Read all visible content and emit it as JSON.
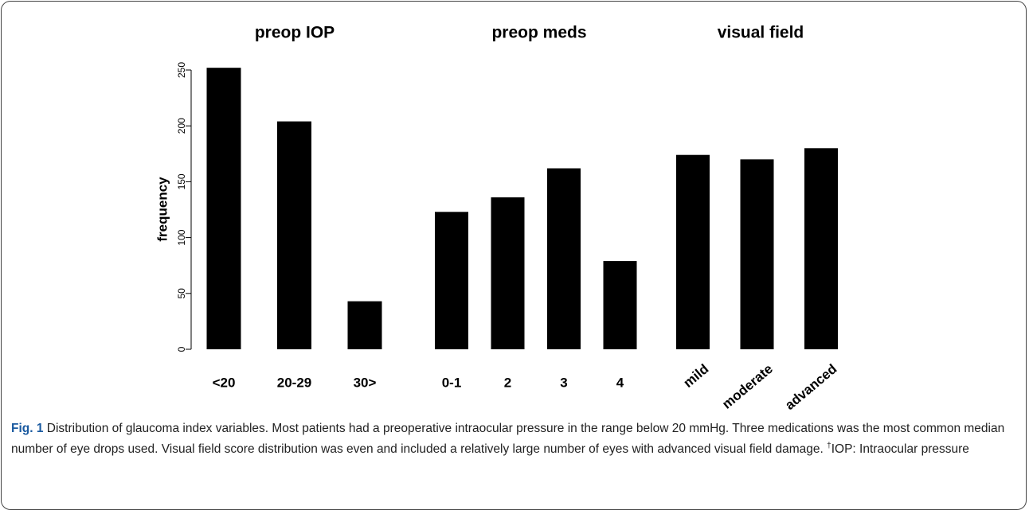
{
  "chart_data": [
    {
      "type": "bar",
      "title": "preop IOP",
      "ylabel": "frequency",
      "categories": [
        "<20",
        "20-29",
        "30>"
      ],
      "values": [
        252,
        204,
        43
      ],
      "color": "#000000",
      "ylim": [
        0,
        250
      ],
      "yticks": [
        0,
        50,
        100,
        150,
        200,
        250
      ]
    },
    {
      "type": "bar",
      "title": "preop meds",
      "categories": [
        "0-1",
        "2",
        "3",
        "4"
      ],
      "values": [
        123,
        136,
        162,
        79
      ],
      "color": "#000000",
      "ylim": [
        0,
        250
      ]
    },
    {
      "type": "bar",
      "title": "visual field",
      "categories": [
        "mild",
        "moderate",
        "advanced"
      ],
      "values": [
        174,
        170,
        180
      ],
      "color": "#000000",
      "ylim": [
        0,
        250
      ]
    }
  ],
  "caption": {
    "label": "Fig. 1",
    "text": "Distribution of glaucoma index variables. Most patients had a preoperative intraocular pressure in the range below 20 mmHg. Three medications was the most common median number of eye drops used. Visual field score distribution was even and included a relatively large number of eyes with advanced visual field damage.",
    "sup": "†",
    "tail": "IOP: Intraocular pressure"
  }
}
